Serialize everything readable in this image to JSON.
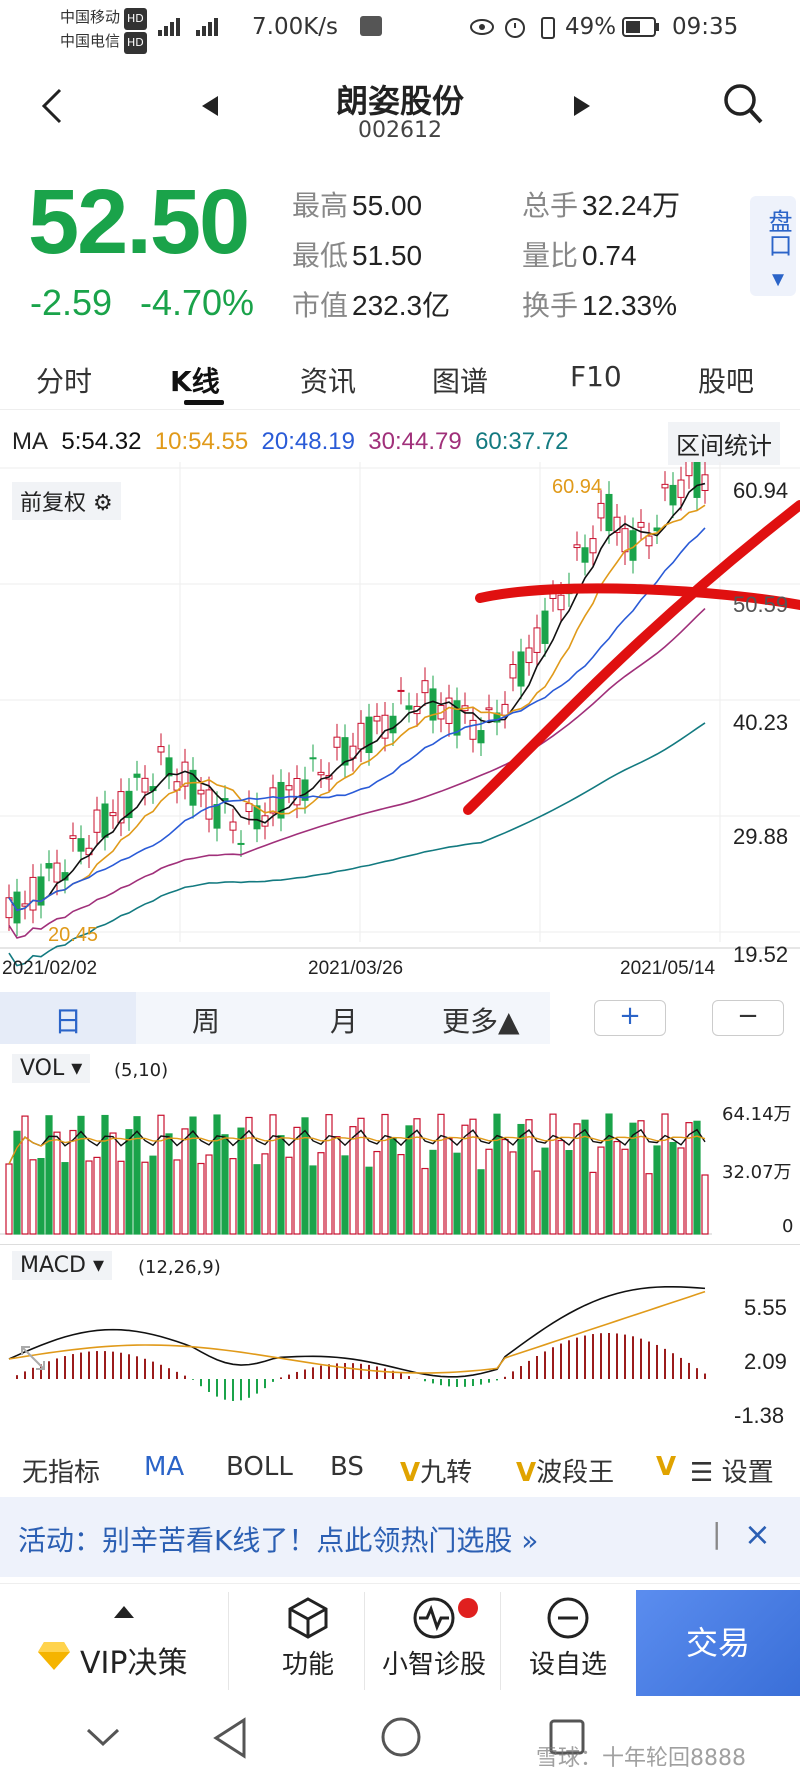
{
  "status_bar": {
    "carrier1": "中国移动",
    "carrier2": "中国电信",
    "hd": "HD",
    "speed": "7.00K/s",
    "battery": "49%",
    "time": "09:35"
  },
  "header": {
    "stock_name": "朗姿股份",
    "stock_code": "002612"
  },
  "quote": {
    "price": "52.50",
    "change": "-2.59",
    "change_pct": "-4.70%",
    "high_label": "最高",
    "high": "55.00",
    "low_label": "最低",
    "low": "51.50",
    "mktcap_label": "市值",
    "mktcap": "232.3亿",
    "volume_label": "总手",
    "volume": "32.24万",
    "vol_ratio_label": "量比",
    "vol_ratio": "0.74",
    "turnover_label": "换手",
    "turnover": "12.33%",
    "pankou": "盘口"
  },
  "tabs": [
    "分时",
    "K线",
    "资讯",
    "图谱",
    "F10",
    "股吧"
  ],
  "ma_bar": {
    "ma": "MA",
    "ma5": "5:54.32",
    "ma10": "10:54.55",
    "ma20": "20:48.19",
    "ma30": "30:44.79",
    "ma60": "60:37.72",
    "range_stats": "区间统计"
  },
  "kline": {
    "adjust_label": "前复权",
    "y_ticks": [
      "60.94",
      "50.59",
      "40.23",
      "29.88",
      "19.52"
    ],
    "x_ticks": [
      "2021/02/02",
      "2021/03/26",
      "2021/05/14"
    ],
    "high_mark": "60.94",
    "low_mark": "20.45"
  },
  "period_tabs": [
    "日",
    "周",
    "月",
    "更多▲"
  ],
  "zoom": {
    "plus": "+",
    "minus": "−"
  },
  "vol": {
    "label": "VOL",
    "params": "(5,10)",
    "y_ticks": [
      "64.14万",
      "32.07万",
      "0"
    ]
  },
  "macd": {
    "label": "MACD",
    "params": "(12,26,9)",
    "y_ticks": [
      "5.55",
      "2.09",
      "-1.38"
    ]
  },
  "indicators": [
    "无指标",
    "MA",
    "BOLL",
    "BS",
    "九转",
    "波段王",
    "设置"
  ],
  "promo": {
    "text": "活动：别辛苦看K线了！点此领热门选股 »",
    "close": "×"
  },
  "bottom_bar": {
    "vip": "VIP决策",
    "func": "功能",
    "diag": "小智诊股",
    "watch": "设自选",
    "trade": "交易"
  },
  "watermark": "雪球：十年轮回8888",
  "colors": {
    "up": "#c8102e",
    "down": "#1aa34a",
    "ma5": "#111111",
    "ma10": "#e09a1a",
    "ma20": "#2a5bd7",
    "ma30": "#a0307a",
    "ma60": "#137a80",
    "accent": "#2b64c8"
  }
}
